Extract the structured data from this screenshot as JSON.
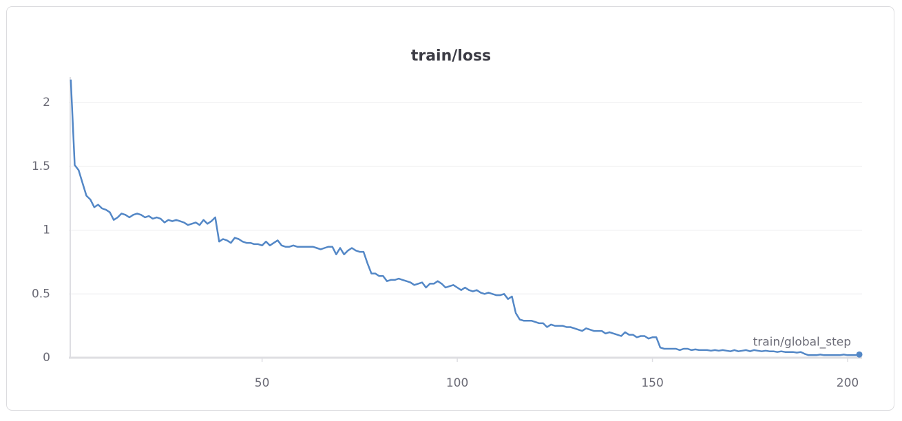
{
  "chart_data": {
    "type": "line",
    "title": "train/loss",
    "x": [
      1,
      2,
      3,
      4,
      5,
      6,
      7,
      8,
      9,
      10,
      11,
      12,
      13,
      14,
      15,
      16,
      17,
      18,
      19,
      20,
      21,
      22,
      23,
      24,
      25,
      26,
      27,
      28,
      29,
      30,
      31,
      32,
      33,
      34,
      35,
      36,
      37,
      38,
      39,
      40,
      41,
      42,
      43,
      44,
      45,
      46,
      47,
      48,
      49,
      50,
      51,
      52,
      53,
      54,
      55,
      56,
      57,
      58,
      59,
      60,
      61,
      62,
      63,
      64,
      65,
      66,
      67,
      68,
      69,
      70,
      71,
      72,
      73,
      74,
      75,
      76,
      77,
      78,
      79,
      80,
      81,
      82,
      83,
      84,
      85,
      86,
      87,
      88,
      89,
      90,
      91,
      92,
      93,
      94,
      95,
      96,
      97,
      98,
      99,
      100,
      101,
      102,
      103,
      104,
      105,
      106,
      107,
      108,
      109,
      110,
      111,
      112,
      113,
      114,
      115,
      116,
      117,
      118,
      119,
      120,
      121,
      122,
      123,
      124,
      125,
      126,
      127,
      128,
      129,
      130,
      131,
      132,
      133,
      134,
      135,
      136,
      137,
      138,
      139,
      140,
      141,
      142,
      143,
      144,
      145,
      146,
      147,
      148,
      149,
      150,
      151,
      152,
      153,
      154,
      155,
      156,
      157,
      158,
      159,
      160,
      161,
      162,
      163,
      164,
      165,
      166,
      167,
      168,
      169,
      170,
      171,
      172,
      173,
      174,
      175,
      176,
      177,
      178,
      179,
      180,
      181,
      182,
      183,
      184,
      185,
      186,
      187,
      188,
      189,
      190,
      191,
      192,
      193,
      194,
      195,
      196,
      197,
      198,
      199,
      200,
      201,
      202,
      203
    ],
    "series": [
      {
        "name": "train/global_step",
        "color": "#5387c6",
        "values": [
          2.18,
          1.51,
          1.47,
          1.37,
          1.27,
          1.24,
          1.18,
          1.2,
          1.17,
          1.16,
          1.14,
          1.08,
          1.1,
          1.13,
          1.12,
          1.1,
          1.12,
          1.13,
          1.12,
          1.1,
          1.11,
          1.09,
          1.1,
          1.09,
          1.06,
          1.08,
          1.07,
          1.08,
          1.07,
          1.06,
          1.04,
          1.05,
          1.06,
          1.04,
          1.08,
          1.05,
          1.07,
          1.1,
          0.91,
          0.93,
          0.92,
          0.9,
          0.94,
          0.93,
          0.91,
          0.9,
          0.9,
          0.89,
          0.89,
          0.88,
          0.91,
          0.88,
          0.9,
          0.92,
          0.88,
          0.87,
          0.87,
          0.88,
          0.87,
          0.87,
          0.87,
          0.87,
          0.87,
          0.86,
          0.85,
          0.86,
          0.87,
          0.87,
          0.81,
          0.86,
          0.81,
          0.84,
          0.86,
          0.84,
          0.83,
          0.83,
          0.74,
          0.66,
          0.66,
          0.64,
          0.64,
          0.6,
          0.61,
          0.61,
          0.62,
          0.61,
          0.6,
          0.59,
          0.57,
          0.58,
          0.59,
          0.55,
          0.58,
          0.58,
          0.6,
          0.58,
          0.55,
          0.56,
          0.57,
          0.55,
          0.53,
          0.55,
          0.53,
          0.52,
          0.53,
          0.51,
          0.5,
          0.51,
          0.5,
          0.49,
          0.49,
          0.5,
          0.46,
          0.48,
          0.35,
          0.3,
          0.29,
          0.29,
          0.29,
          0.28,
          0.27,
          0.27,
          0.24,
          0.26,
          0.25,
          0.25,
          0.25,
          0.24,
          0.24,
          0.23,
          0.22,
          0.21,
          0.23,
          0.22,
          0.21,
          0.21,
          0.21,
          0.19,
          0.2,
          0.19,
          0.18,
          0.17,
          0.2,
          0.18,
          0.18,
          0.16,
          0.17,
          0.17,
          0.15,
          0.16,
          0.16,
          0.08,
          0.07,
          0.07,
          0.07,
          0.07,
          0.06,
          0.07,
          0.07,
          0.06,
          0.065,
          0.06,
          0.06,
          0.06,
          0.055,
          0.06,
          0.055,
          0.06,
          0.055,
          0.05,
          0.06,
          0.05,
          0.055,
          0.06,
          0.05,
          0.06,
          0.055,
          0.05,
          0.055,
          0.05,
          0.05,
          0.045,
          0.05,
          0.045,
          0.045,
          0.045,
          0.04,
          0.045,
          0.03,
          0.02,
          0.02,
          0.02,
          0.025,
          0.02,
          0.02,
          0.02,
          0.02,
          0.02,
          0.025,
          0.02,
          0.02,
          0.02,
          0.025
        ]
      }
    ],
    "xlim": [
      0.5,
      203.7
    ],
    "xticks": [
      50,
      100,
      150,
      200
    ],
    "ylim": [
      0,
      2.2
    ],
    "yticks": [
      0,
      0.5,
      1,
      1.5,
      2
    ],
    "grid": true
  }
}
